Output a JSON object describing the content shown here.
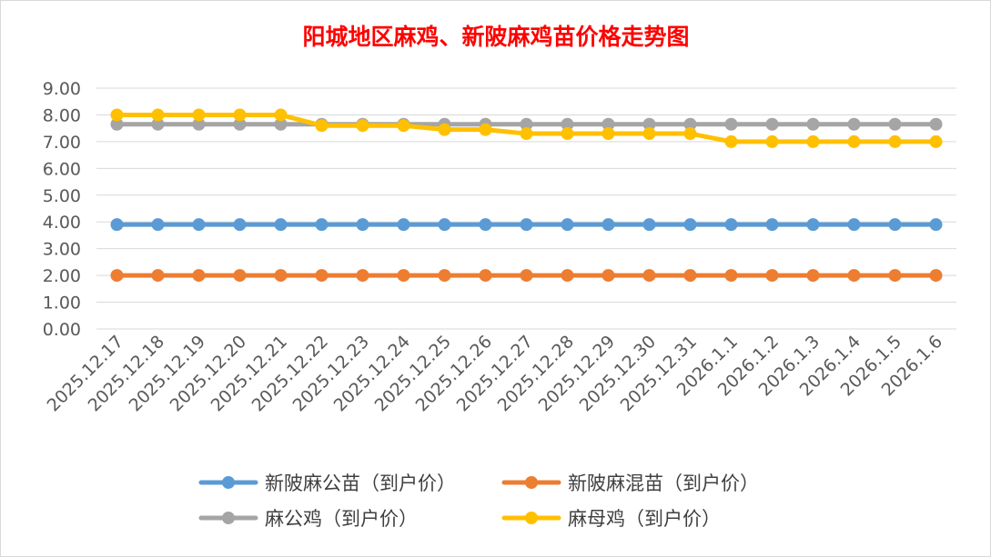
{
  "chart_data": {
    "type": "line",
    "title": "阳城地区麻鸡、新陂麻鸡苗价格走势图",
    "xlabel": "",
    "ylabel": "",
    "ylim": [
      0,
      9
    ],
    "yticks": [
      "0.00",
      "1.00",
      "2.00",
      "3.00",
      "4.00",
      "5.00",
      "6.00",
      "7.00",
      "8.00",
      "9.00"
    ],
    "grid": true,
    "legend_position": "bottom",
    "categories": [
      "2025.12.17",
      "2025.12.18",
      "2025.12.19",
      "2025.12.20",
      "2025.12.21",
      "2025.12.22",
      "2025.12.23",
      "2025.12.24",
      "2025.12.25",
      "2025.12.26",
      "2025.12.27",
      "2025.12.28",
      "2025.12.29",
      "2025.12.30",
      "2025.12.31",
      "2026.1.1",
      "2026.1.2",
      "2026.1.3",
      "2026.1.4",
      "2026.1.5",
      "2026.1.6"
    ],
    "series": [
      {
        "name": "新陂麻公苗（到户价）",
        "color": "#5b9bd5",
        "values": [
          3.9,
          3.9,
          3.9,
          3.9,
          3.9,
          3.9,
          3.9,
          3.9,
          3.9,
          3.9,
          3.9,
          3.9,
          3.9,
          3.9,
          3.9,
          3.9,
          3.9,
          3.9,
          3.9,
          3.9,
          3.9
        ]
      },
      {
        "name": "新陂麻混苗（到户价）",
        "color": "#ed7d31",
        "values": [
          2.0,
          2.0,
          2.0,
          2.0,
          2.0,
          2.0,
          2.0,
          2.0,
          2.0,
          2.0,
          2.0,
          2.0,
          2.0,
          2.0,
          2.0,
          2.0,
          2.0,
          2.0,
          2.0,
          2.0,
          2.0
        ]
      },
      {
        "name": "麻公鸡（到户价）",
        "color": "#a5a5a5",
        "values": [
          7.65,
          7.65,
          7.65,
          7.65,
          7.65,
          7.65,
          7.65,
          7.65,
          7.65,
          7.65,
          7.65,
          7.65,
          7.65,
          7.65,
          7.65,
          7.65,
          7.65,
          7.65,
          7.65,
          7.65,
          7.65
        ]
      },
      {
        "name": "麻母鸡（到户价）",
        "color": "#ffc000",
        "values": [
          8.0,
          8.0,
          8.0,
          8.0,
          8.0,
          7.6,
          7.6,
          7.6,
          7.45,
          7.45,
          7.3,
          7.3,
          7.3,
          7.3,
          7.3,
          7.0,
          7.0,
          7.0,
          7.0,
          7.0,
          7.0
        ]
      }
    ]
  }
}
